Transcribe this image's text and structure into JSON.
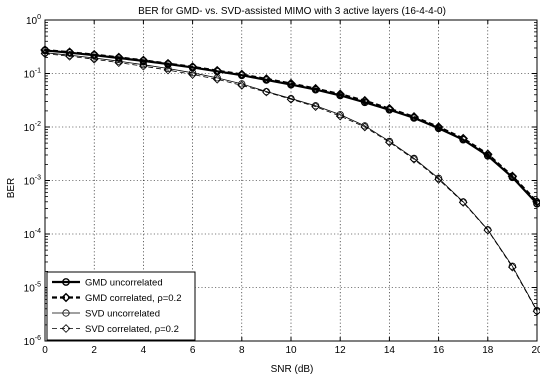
{
  "chart_data": {
    "type": "line",
    "title": "BER for GMD- vs. SVD-assisted MIMO with 3 active layers (16-4-4-0)",
    "xlabel": "SNR (dB)",
    "ylabel": "BER",
    "xlim": [
      0,
      20
    ],
    "ylim": [
      1e-06,
      1
    ],
    "yscale": "log",
    "grid": true,
    "legend_position": "bottom-left",
    "x_ticks": [
      "0",
      "2",
      "4",
      "6",
      "8",
      "10",
      "12",
      "14",
      "16",
      "18",
      "20"
    ],
    "y_ticks": [
      {
        "base": "10",
        "exp": "0"
      },
      {
        "base": "10",
        "exp": "-1"
      },
      {
        "base": "10",
        "exp": "-2"
      },
      {
        "base": "10",
        "exp": "-3"
      },
      {
        "base": "10",
        "exp": "-4"
      },
      {
        "base": "10",
        "exp": "-5"
      },
      {
        "base": "10",
        "exp": "-6"
      }
    ],
    "x": [
      0,
      1,
      2,
      3,
      4,
      5,
      6,
      7,
      8,
      9,
      10,
      11,
      12,
      13,
      14,
      15,
      16,
      17,
      18,
      19,
      20
    ],
    "series": [
      {
        "name": "GMD uncorrelated",
        "marker": "circle",
        "dashed": false,
        "bold": true,
        "values": [
          0.27,
          0.245,
          0.22,
          0.195,
          0.172,
          0.15,
          0.13,
          0.11,
          0.093,
          0.076,
          0.062,
          0.05,
          0.039,
          0.029,
          0.021,
          0.0148,
          0.0095,
          0.0058,
          0.0029,
          0.00115,
          0.00037
        ]
      },
      {
        "name": "GMD correlated, ρ=0.2",
        "marker": "diamond",
        "dashed": true,
        "bold": true,
        "values": [
          0.275,
          0.25,
          0.225,
          0.2,
          0.176,
          0.153,
          0.133,
          0.113,
          0.096,
          0.079,
          0.065,
          0.052,
          0.041,
          0.031,
          0.022,
          0.0155,
          0.01,
          0.0061,
          0.0031,
          0.0012,
          0.0004
        ]
      },
      {
        "name": "SVD uncorrelated",
        "marker": "circle",
        "dashed": false,
        "bold": false,
        "values": [
          0.245,
          0.22,
          0.195,
          0.17,
          0.146,
          0.124,
          0.103,
          0.083,
          0.064,
          0.046,
          0.034,
          0.025,
          0.017,
          0.0105,
          0.0054,
          0.0026,
          0.0011,
          0.0004,
          0.00012,
          2.5e-05,
          3.7e-06
        ]
      },
      {
        "name": "SVD correlated, ρ=0.2",
        "marker": "diamond",
        "dashed": true,
        "bold": false,
        "values": [
          0.235,
          0.21,
          0.185,
          0.16,
          0.137,
          0.116,
          0.096,
          0.078,
          0.06,
          0.045,
          0.033,
          0.024,
          0.016,
          0.01,
          0.0052,
          0.0025,
          0.00105,
          0.00039,
          0.000118,
          2.4e-05,
          3.6e-06
        ]
      }
    ]
  }
}
